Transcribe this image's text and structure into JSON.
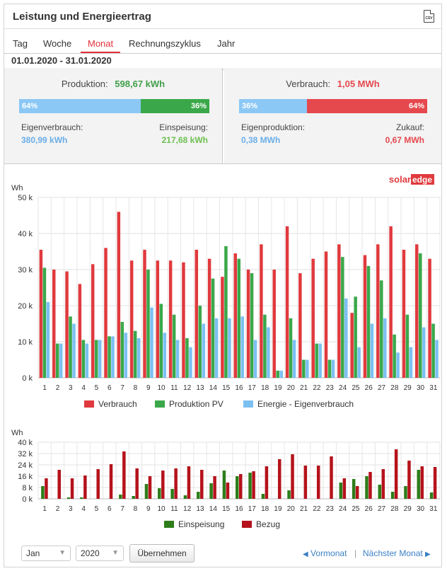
{
  "header": {
    "title": "Leistung und Energieertrag",
    "csv_label": "CSV"
  },
  "tabs": [
    "Tag",
    "Woche",
    "Monat",
    "Rechnungszyklus",
    "Jahr"
  ],
  "active_tab": "Monat",
  "date_range": "01.01.2020 - 31.01.2020",
  "production": {
    "label": "Produktion:",
    "value": "598,67 kWh",
    "left_pct": "64%",
    "right_pct": "36%",
    "left_fraction": 0.64,
    "self_label": "Eigenverbrauch:",
    "self_value": "380,99 kWh",
    "feed_label": "Einspeisung:",
    "feed_value": "217,68 kWh"
  },
  "consumption": {
    "label": "Verbrauch:",
    "value": "1,05 MWh",
    "left_pct": "36%",
    "right_pct": "64%",
    "left_fraction": 0.36,
    "self_label": "Eigenproduktion:",
    "self_value": "0,38 MWh",
    "buy_label": "Zukauf:",
    "buy_value": "0,67 MWh"
  },
  "brand": {
    "left": "solar",
    "right": "edge"
  },
  "colors": {
    "verbrauch": "#e03a3e",
    "produktion": "#3aa84a",
    "eigen": "#7cc0f2",
    "einspeisung": "#2e7d1a",
    "bezug": "#b5121b"
  },
  "chart_data": [
    {
      "type": "bar",
      "ylabel": "Wh",
      "ylim": [
        0,
        50000
      ],
      "ytick_labels": [
        "0 k",
        "10 k",
        "20 k",
        "30 k",
        "40 k",
        "50 k"
      ],
      "grid": true,
      "legend_position": "bottom",
      "categories": [
        "1",
        "2",
        "3",
        "4",
        "5",
        "6",
        "7",
        "8",
        "9",
        "10",
        "11",
        "12",
        "13",
        "14",
        "15",
        "16",
        "17",
        "18",
        "19",
        "20",
        "21",
        "22",
        "23",
        "24",
        "25",
        "26",
        "27",
        "28",
        "29",
        "30",
        "31"
      ],
      "series": [
        {
          "name": "Verbrauch",
          "values": [
            35500,
            30000,
            29500,
            26000,
            31500,
            36000,
            46000,
            32500,
            35500,
            32500,
            32500,
            32000,
            35500,
            33000,
            28000,
            34500,
            30000,
            37000,
            30000,
            42000,
            29000,
            33000,
            35000,
            37000,
            18000,
            34000,
            37000,
            42000,
            35500,
            37000,
            33000
          ]
        },
        {
          "name": "Produktion PV",
          "values": [
            30500,
            9500,
            17000,
            10500,
            10500,
            11500,
            15500,
            13000,
            30000,
            20500,
            17500,
            11000,
            20000,
            27500,
            36500,
            33000,
            29000,
            17500,
            2000,
            16500,
            5000,
            9500,
            5000,
            33500,
            22500,
            31000,
            27000,
            12000,
            17500,
            34500,
            15000
          ]
        },
        {
          "name": "Energie - Eigenverbrauch",
          "values": [
            21000,
            9500,
            15000,
            9500,
            10500,
            11500,
            12500,
            11000,
            19500,
            12500,
            10500,
            8500,
            15000,
            16500,
            16500,
            17000,
            10500,
            14000,
            2000,
            10500,
            5000,
            9500,
            5000,
            22000,
            8500,
            15000,
            16500,
            7000,
            8500,
            14000,
            10500
          ]
        }
      ]
    },
    {
      "type": "bar",
      "ylabel": "Wh",
      "ylim": [
        0,
        40000
      ],
      "ytick_labels": [
        "0 k",
        "8 k",
        "16 k",
        "24 k",
        "32 k",
        "40 k"
      ],
      "grid": true,
      "legend_position": "bottom",
      "categories": [
        "1",
        "2",
        "3",
        "4",
        "5",
        "6",
        "7",
        "8",
        "9",
        "10",
        "11",
        "12",
        "13",
        "14",
        "15",
        "16",
        "17",
        "18",
        "19",
        "20",
        "21",
        "22",
        "23",
        "24",
        "25",
        "26",
        "27",
        "28",
        "29",
        "30",
        "31"
      ],
      "series": [
        {
          "name": "Einspeisung",
          "values": [
            9000,
            0,
            1000,
            1000,
            0,
            0,
            3000,
            2000,
            10500,
            7500,
            7000,
            2500,
            5000,
            11000,
            20000,
            16000,
            18500,
            3500,
            0,
            6000,
            0,
            0,
            0,
            11500,
            14000,
            16000,
            10000,
            5000,
            9000,
            20500,
            4500
          ]
        },
        {
          "name": "Bezug",
          "values": [
            14500,
            20500,
            14500,
            16500,
            21000,
            24500,
            33500,
            21500,
            16000,
            20000,
            21500,
            23000,
            20500,
            16000,
            11500,
            17500,
            19500,
            23000,
            28000,
            31500,
            23500,
            23500,
            30000,
            14500,
            9000,
            19000,
            21000,
            35000,
            27000,
            23000,
            22500
          ]
        }
      ]
    }
  ],
  "controls": {
    "month": "Jan",
    "year": "2020",
    "apply_label": "Übernehmen",
    "prev_label": "Vormonat",
    "next_label": "Nächster Monat"
  }
}
